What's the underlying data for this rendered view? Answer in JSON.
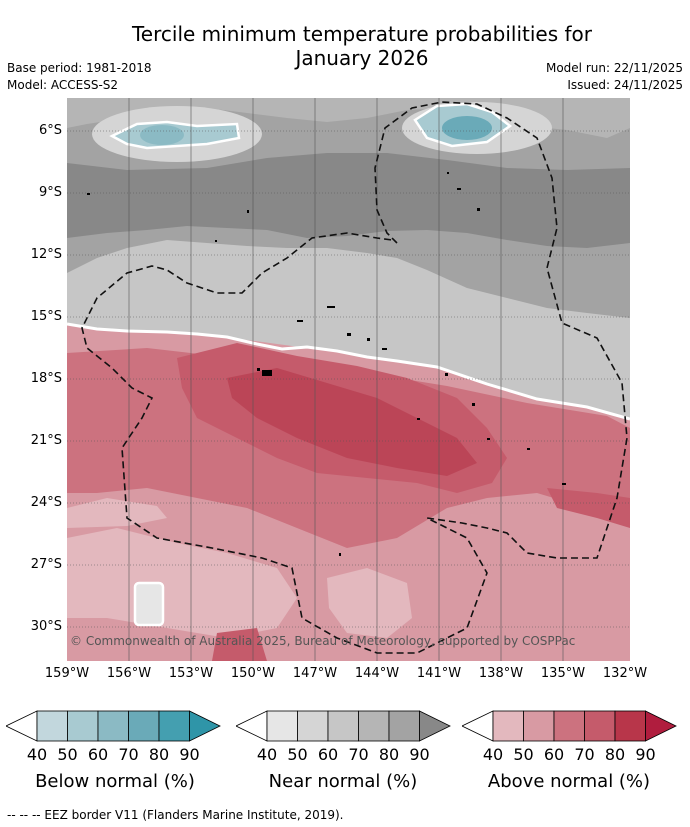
{
  "title_line1": "Tercile minimum temperature probabilities for",
  "title_line2": "January 2026",
  "base_period": "Base period: 1981-2018",
  "model": "Model: ACCESS-S2",
  "model_run": "Model run: 22/11/2025",
  "issued": "Issued: 24/11/2025",
  "copyright": "© Commonwealth of Australia 2025, Bureau of Meteorology, supported by COSPPac",
  "lat_labels": [
    "6°S",
    "9°S",
    "12°S",
    "15°S",
    "18°S",
    "21°S",
    "24°S",
    "27°S",
    "30°S"
  ],
  "lon_labels": [
    "159°W",
    "156°W",
    "153°W",
    "150°W",
    "147°W",
    "144°W",
    "141°W",
    "138°W",
    "135°W",
    "132°W"
  ],
  "colorbars": [
    {
      "title": "Below normal (%)",
      "ticks": [
        "40",
        "50",
        "60",
        "70",
        "80",
        "90"
      ],
      "colors": [
        "#c2d7dd",
        "#a8cad1",
        "#8bbac4",
        "#6aaab8",
        "#449fb0"
      ]
    },
    {
      "title": "Near normal (%)",
      "ticks": [
        "40",
        "50",
        "60",
        "70",
        "80",
        "90"
      ],
      "colors": [
        "#e6e6e6",
        "#d5d5d5",
        "#c6c6c6",
        "#b5b5b5",
        "#a3a3a3"
      ]
    },
    {
      "title": "Above normal (%)",
      "ticks": [
        "40",
        "50",
        "60",
        "70",
        "80",
        "90"
      ],
      "colors": [
        "#e3b8be",
        "#d89aa3",
        "#cc727f",
        "#c55b6b",
        "#b8364a"
      ]
    }
  ],
  "footer": "--  --  -- EEZ border V11 (Flanders Marine Institute, 2019)."
}
